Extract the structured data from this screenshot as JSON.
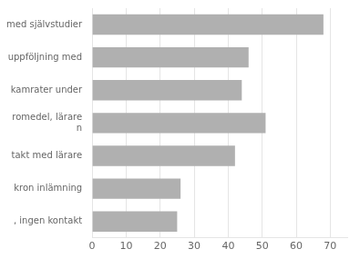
{
  "chart_data": {
    "type": "bar",
    "orientation": "horizontal",
    "categories": [
      "med självstudier",
      "uppföljning med",
      "kamrater under",
      "romedel, lärare\nn",
      "takt med lärare",
      "kron inlämning",
      ", ingen kontakt"
    ],
    "values": [
      68,
      46,
      44,
      51,
      42,
      26,
      25
    ],
    "color": "#b0b0b0",
    "xlim": [
      0,
      75
    ],
    "xticks": [
      0,
      10,
      20,
      30,
      40,
      50,
      60,
      70
    ],
    "grid": true
  }
}
